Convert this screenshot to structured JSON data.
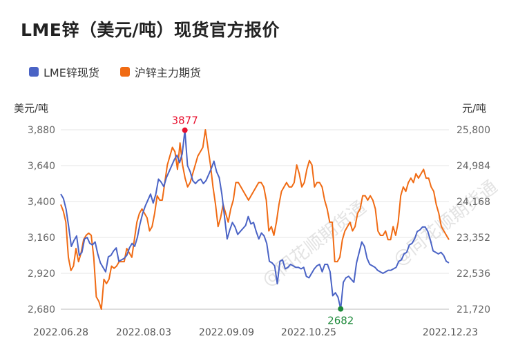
{
  "chart_data": {
    "type": "line",
    "title": "LME锌（美元/吨）现货官方报价",
    "left_unit": "美元/吨",
    "right_unit": "元/吨",
    "x_labels": [
      "2022.06.28",
      "2022.08.03",
      "2022.09.09",
      "2022.10.25",
      "2022.12.23"
    ],
    "y_left_ticks": [
      "3,880",
      "3,640",
      "3,400",
      "3,160",
      "2,920",
      "2,680"
    ],
    "y_right_ticks": [
      "25,800",
      "24,984",
      "24,168",
      "23,352",
      "22,536",
      "21,720"
    ],
    "y_left_range": [
      2680,
      3880
    ],
    "y_right_range": [
      21720,
      25800
    ],
    "grid": true,
    "legend_position": "top-left",
    "series": [
      {
        "name": "LME锌现货",
        "axis": "left",
        "color": "#4a63c5",
        "values": [
          3450,
          3420,
          3350,
          3230,
          3100,
          3140,
          3170,
          3040,
          3060,
          3150,
          3160,
          3120,
          3110,
          3130,
          3050,
          2990,
          2960,
          2930,
          3030,
          3040,
          3070,
          3090,
          3000,
          3010,
          3020,
          3040,
          3090,
          3120,
          3100,
          3160,
          3250,
          3320,
          3370,
          3410,
          3450,
          3390,
          3450,
          3550,
          3530,
          3500,
          3560,
          3600,
          3640,
          3680,
          3710,
          3660,
          3720,
          3877,
          3640,
          3600,
          3540,
          3520,
          3540,
          3550,
          3520,
          3540,
          3580,
          3620,
          3670,
          3600,
          3560,
          3450,
          3300,
          3150,
          3210,
          3260,
          3230,
          3180,
          3200,
          3220,
          3240,
          3300,
          3250,
          3260,
          3200,
          3150,
          3190,
          3170,
          3120,
          3000,
          2990,
          2970,
          2850,
          3000,
          3010,
          2950,
          2960,
          2980,
          2970,
          2960,
          2960,
          2950,
          2960,
          2900,
          2890,
          2920,
          2950,
          2970,
          2980,
          2930,
          2980,
          2980,
          2930,
          2770,
          2790,
          2760,
          2682,
          2860,
          2890,
          2900,
          2880,
          2860,
          2990,
          3060,
          3130,
          3100,
          3020,
          2980,
          2970,
          2960,
          2940,
          2930,
          2920,
          2930,
          2940,
          2940,
          2950,
          2960,
          3000,
          3010,
          3050,
          3060,
          3110,
          3120,
          3150,
          3200,
          3210,
          3230,
          3230,
          3200,
          3140,
          3070,
          3060,
          3050,
          3060,
          3040,
          3000,
          2990
        ]
      },
      {
        "name": "沪锌主力期货",
        "axis": "right",
        "color": "#f06b14",
        "values": [
          24100,
          23950,
          23700,
          22900,
          22600,
          22700,
          23100,
          22800,
          23000,
          23300,
          23400,
          23450,
          23400,
          22900,
          22000,
          21900,
          21720,
          22400,
          22300,
          22400,
          22700,
          22650,
          22700,
          22800,
          22800,
          22800,
          23100,
          23000,
          22900,
          23300,
          23700,
          23900,
          24000,
          23900,
          23800,
          23500,
          23600,
          23900,
          24300,
          24200,
          24200,
          24600,
          25000,
          25200,
          25400,
          25300,
          24900,
          25500,
          25000,
          24700,
          24500,
          24600,
          24800,
          25000,
          25200,
          25300,
          25400,
          25800,
          25400,
          25000,
          24500,
          24100,
          23600,
          23800,
          24100,
          23900,
          23700,
          24000,
          24200,
          24600,
          24600,
          24500,
          24400,
          24300,
          24200,
          24300,
          24400,
          24500,
          24600,
          24600,
          24500,
          24200,
          23500,
          23600,
          23400,
          23700,
          24100,
          24400,
          24500,
          24600,
          24500,
          24500,
          24600,
          25000,
          24800,
          24500,
          24600,
          24900,
          25100,
          25000,
          24500,
          24600,
          24600,
          24500,
          24200,
          24000,
          23700,
          23700,
          22800,
          22800,
          22900,
          23300,
          23500,
          23600,
          23700,
          23500,
          23600,
          23900,
          24000,
          24300,
          24300,
          24200,
          24300,
          24200,
          24000,
          23500,
          23400,
          23400,
          23500,
          23300,
          23300,
          23600,
          23400,
          23700,
          24300,
          24500,
          24400,
          24600,
          24700,
          24600,
          24800,
          24700,
          24800,
          24900,
          24700,
          24700,
          24500,
          24400,
          24100,
          23900,
          23600,
          23500,
          23400,
          23300
        ]
      }
    ],
    "annotations": [
      {
        "label": "3877",
        "series": 0,
        "index": 47,
        "color": "#e8102e",
        "position": "above"
      },
      {
        "label": "2682",
        "series": 0,
        "index": 106,
        "color": "#1f8a3b",
        "position": "below"
      }
    ]
  },
  "watermark": {
    "text": "@同花顺期货通",
    "color": "#cccccc"
  }
}
